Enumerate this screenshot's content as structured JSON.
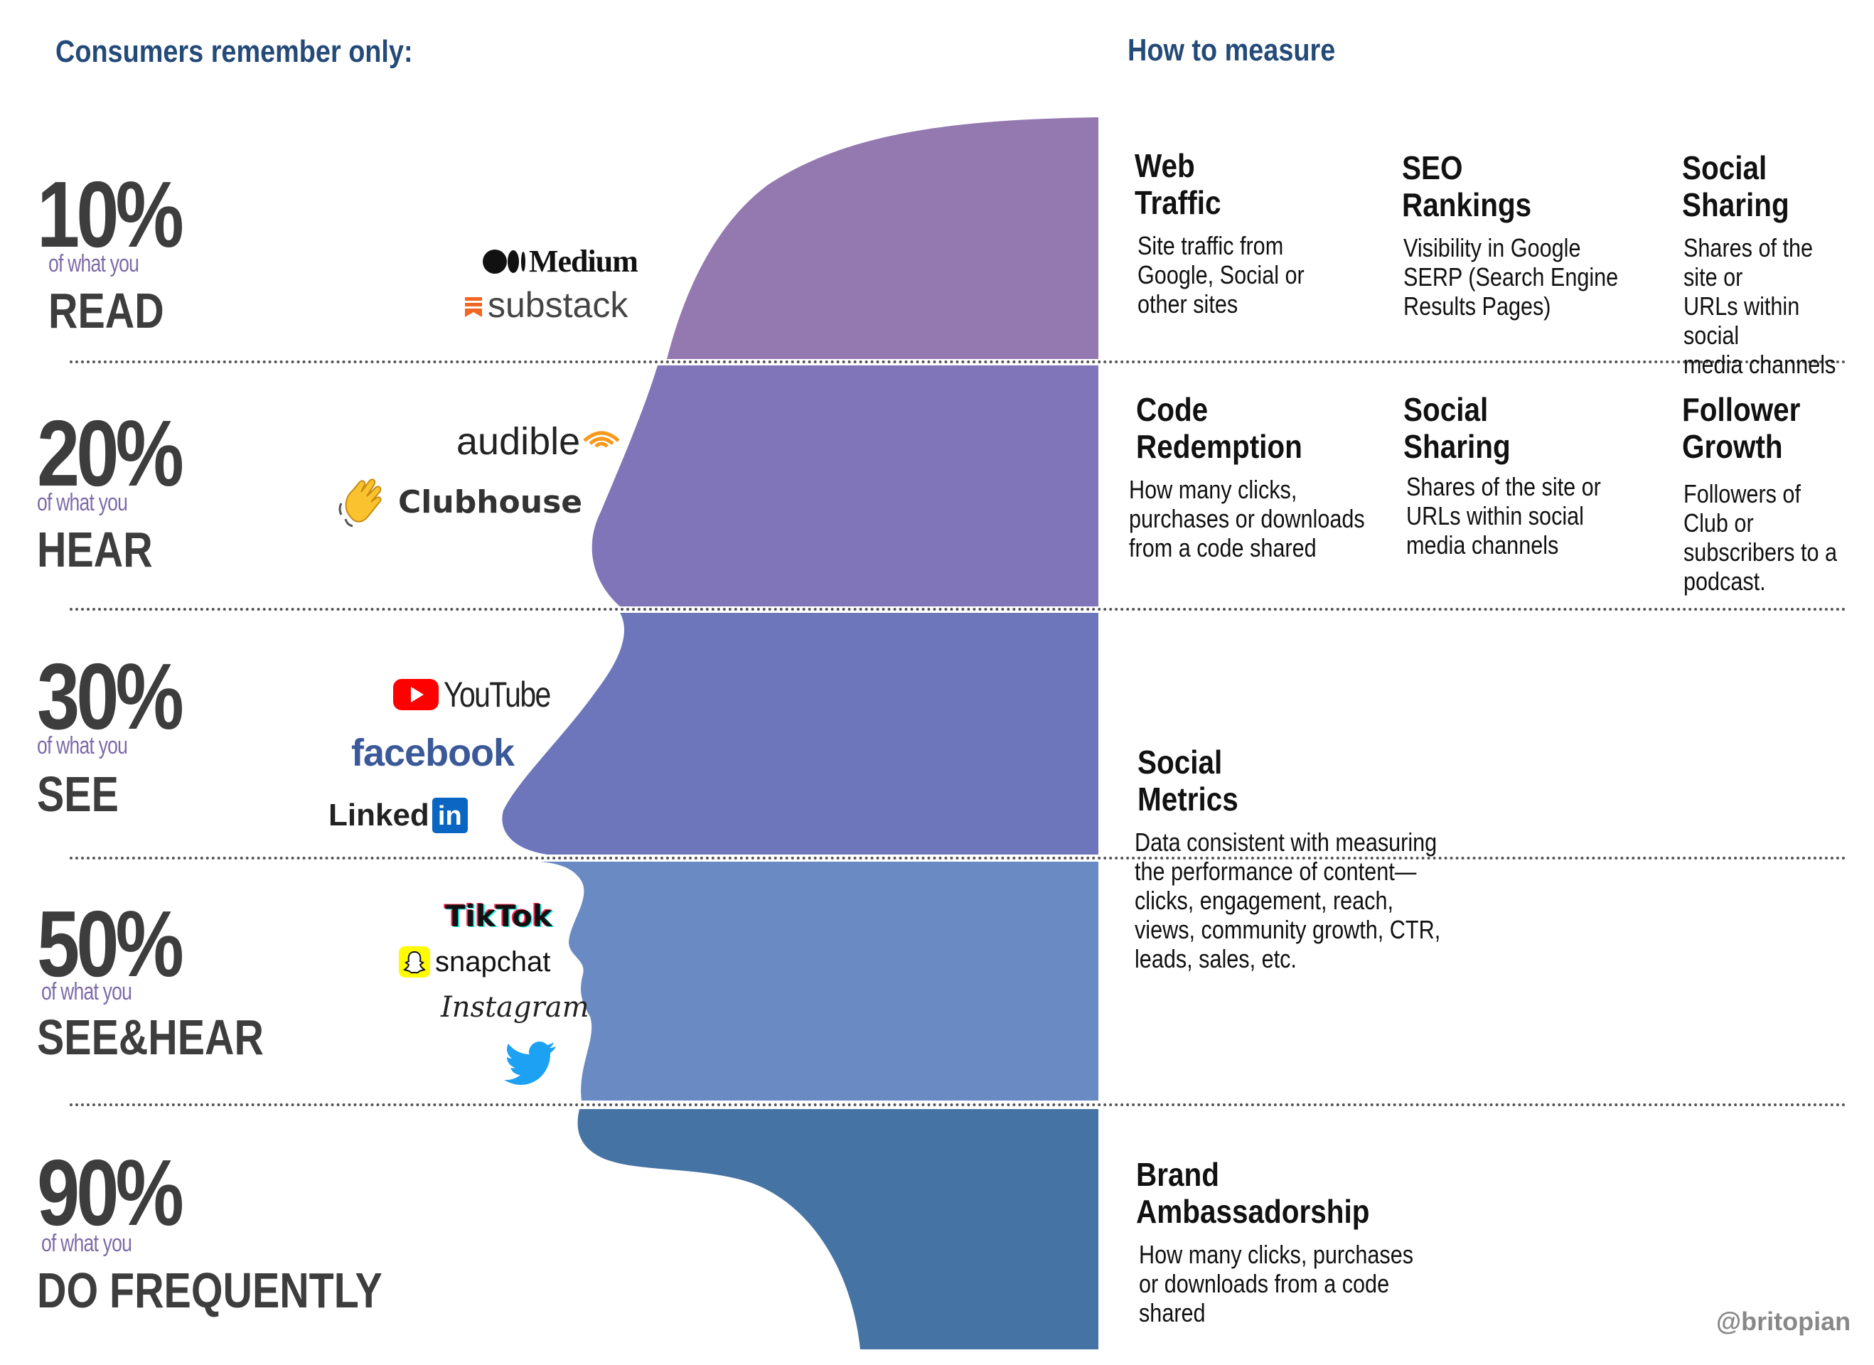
{
  "header": {
    "left_title": "Consumers remember only:",
    "right_title": "How to measure"
  },
  "colors": {
    "read": "#9479b0",
    "hear": "#8075b8",
    "see": "#6e76bb",
    "see_hear": "#6a8ac4",
    "do": "#4573a4",
    "header_blue": "#244a78"
  },
  "rows": [
    {
      "percent": "10%",
      "sub": "of what you",
      "verb": "READ",
      "platforms": [
        "Medium",
        "substack"
      ],
      "measures": [
        {
          "title": "Web\nTraffic",
          "desc": "Site traffic from\nGoogle, Social or\nother sites"
        },
        {
          "title": "SEO\nRankings",
          "desc": "Visibility in Google\nSERP (Search Engine\nResults Pages)"
        },
        {
          "title": "Social\nSharing",
          "desc": "Shares of the site or\nURLs within social\nmedia channels"
        }
      ]
    },
    {
      "percent": "20%",
      "sub": "of what you",
      "verb": "HEAR",
      "platforms": [
        "audible",
        "Clubhouse"
      ],
      "measures": [
        {
          "title": "Code\nRedemption",
          "desc": "How many clicks,\npurchases or downloads\nfrom a code shared"
        },
        {
          "title": "Social\nSharing",
          "desc": "Shares of the site or\nURLs within social\nmedia channels"
        },
        {
          "title": "Follower\nGrowth",
          "desc": "Followers of Club or\nsubscribers to a\npodcast."
        }
      ]
    },
    {
      "percent": "30%",
      "sub": "of what you",
      "verb": "SEE",
      "platforms": [
        "YouTube",
        "facebook",
        "Linked",
        "in"
      ]
    },
    {
      "percent": "50%",
      "sub": "of what you",
      "verb": "SEE&HEAR",
      "platforms": [
        "TikTok",
        "snapchat",
        "Instagram"
      ]
    },
    {
      "percent": "90%",
      "sub": "of what you",
      "verb": "DO FREQUENTLY",
      "measures": [
        {
          "title": "Brand\nAmbassadorship",
          "desc": "How many clicks, purchases\nor downloads from a code\nshared"
        }
      ]
    }
  ],
  "social_metrics": {
    "title": "Social\nMetrics",
    "desc": "Data consistent with measuring\nthe performance of content—\nclicks, engagement, reach,\nviews, community growth, CTR,\nleads, sales, etc."
  },
  "icons": [
    "medium-icon",
    "substack-icon",
    "audible-icon",
    "clap-hand-icon",
    "youtube-icon",
    "linkedin-icon",
    "tiktok-icon",
    "snapchat-icon",
    "twitter-icon"
  ],
  "credit": "@britopian"
}
